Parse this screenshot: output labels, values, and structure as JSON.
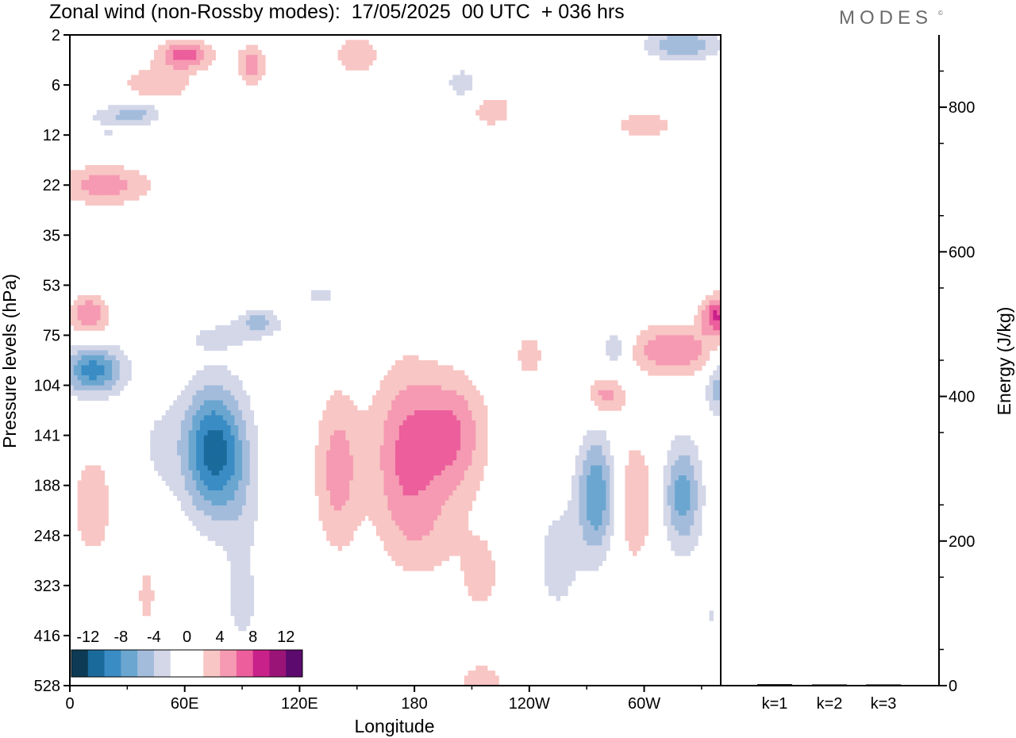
{
  "header": {
    "title": "Zonal wind (non-Rossby modes):  17/05/2025  00 UTC  + 036 hrs",
    "brand": "MODES",
    "brand_mark": "©"
  },
  "chart_data": [
    {
      "type": "heatmap",
      "title": "Zonal wind (non-Rossby modes):  17/05/2025  00 UTC  + 036 hrs",
      "xlabel": "Longitude",
      "ylabel": "Pressure levels (hPa)",
      "x_ticks": [
        "0",
        "60E",
        "120E",
        "180",
        "120W",
        "60W"
      ],
      "x_tick_values": [
        0,
        60,
        120,
        180,
        240,
        300
      ],
      "xlim": [
        0,
        340
      ],
      "y_ticks": [
        "2",
        "6",
        "12",
        "22",
        "35",
        "53",
        "75",
        "104",
        "141",
        "188",
        "248",
        "323",
        "416",
        "528"
      ],
      "y_scale": "pressure levels (inverted, top = 2 hPa)",
      "colorbar": {
        "labels": [
          "-12",
          "-8",
          "-4",
          "0",
          "4",
          "8",
          "12"
        ],
        "colors": [
          "#0d3b55",
          "#1a6a9c",
          "#3a8cc4",
          "#6aa6d0",
          "#a4bcdc",
          "#d3d7e8",
          "#ffffff",
          "#ffffff",
          "#f8c6c4",
          "#f59ab2",
          "#ec5e9c",
          "#c9218a",
          "#9a1478",
          "#5c0a6e"
        ],
        "placement": "lower-left"
      },
      "blobs": [
        {
          "lon": 18,
          "lev": 3.0,
          "r_lon": 26,
          "r_lev": 0.4,
          "v": 5
        },
        {
          "lon": 45,
          "lev": 1.0,
          "r_lon": 18,
          "r_lev": 0.35,
          "v": 4
        },
        {
          "lon": 60,
          "lev": 0.4,
          "r_lon": 14,
          "r_lev": 0.3,
          "v": 7
        },
        {
          "lon": 40,
          "lev": 1.5,
          "r_lon": 10,
          "r_lev": 0.3,
          "v": -3
        },
        {
          "lon": 25,
          "lev": 1.6,
          "r_lon": 15,
          "r_lev": 0.2,
          "v": -4
        },
        {
          "lon": 20,
          "lev": 2.0,
          "r_lon": 12,
          "r_lev": 0.2,
          "v": -2
        },
        {
          "lon": 95,
          "lev": 0.6,
          "r_lon": 8,
          "r_lev": 0.4,
          "v": 5
        },
        {
          "lon": 150,
          "lev": 0.4,
          "r_lon": 12,
          "r_lev": 0.4,
          "v": 4
        },
        {
          "lon": 205,
          "lev": 1.0,
          "r_lon": 10,
          "r_lev": 0.4,
          "v": -3
        },
        {
          "lon": 270,
          "lev": 0.8,
          "r_lon": 20,
          "r_lev": 0.4,
          "v": -2
        },
        {
          "lon": 320,
          "lev": 0.2,
          "r_lon": 20,
          "r_lev": 0.3,
          "v": -6
        },
        {
          "lon": 220,
          "lev": 1.5,
          "r_lon": 14,
          "r_lev": 0.4,
          "v": 3
        },
        {
          "lon": 300,
          "lev": 1.8,
          "r_lon": 20,
          "r_lev": 0.3,
          "v": 3
        },
        {
          "lon": 140,
          "lev": 1.8,
          "r_lon": 18,
          "r_lev": 0.3,
          "v": -2
        },
        {
          "lon": 10,
          "lev": 5.6,
          "r_lon": 10,
          "r_lev": 0.4,
          "v": 6
        },
        {
          "lon": 60,
          "lev": 5.5,
          "r_lon": 20,
          "r_lev": 0.6,
          "v": 2
        },
        {
          "lon": 110,
          "lev": 5.2,
          "r_lon": 16,
          "r_lev": 0.5,
          "v": 2
        },
        {
          "lon": 75,
          "lev": 6.0,
          "r_lon": 22,
          "r_lev": 0.3,
          "v": -3
        },
        {
          "lon": 100,
          "lev": 5.7,
          "r_lon": 12,
          "r_lev": 0.3,
          "v": -5
        },
        {
          "lon": 130,
          "lev": 5.2,
          "r_lon": 10,
          "r_lev": 0.3,
          "v": -3
        },
        {
          "lon": 12,
          "lev": 6.7,
          "r_lon": 16,
          "r_lev": 0.5,
          "v": -9
        },
        {
          "lon": 285,
          "lev": 6.3,
          "r_lon": 8,
          "r_lev": 0.5,
          "v": -4
        },
        {
          "lon": 315,
          "lev": 6.3,
          "r_lon": 24,
          "r_lev": 0.5,
          "v": 6
        },
        {
          "lon": 338,
          "lev": 5.6,
          "r_lon": 8,
          "r_lev": 0.4,
          "v": 8
        },
        {
          "lon": 280,
          "lev": 7.2,
          "r_lon": 10,
          "r_lev": 0.4,
          "v": 5
        },
        {
          "lon": 338,
          "lev": 7.0,
          "r_lon": 6,
          "r_lev": 0.6,
          "v": -5
        },
        {
          "lon": 240,
          "lev": 6.4,
          "r_lon": 8,
          "r_lev": 0.5,
          "v": 3
        },
        {
          "lon": 75,
          "lev": 8.3,
          "r_lon": 16,
          "r_lev": 1.3,
          "v": -11
        },
        {
          "lon": 90,
          "lev": 9.5,
          "r_lon": 12,
          "r_lev": 1.8,
          "v": -2
        },
        {
          "lon": 140,
          "lev": 8.7,
          "r_lon": 12,
          "r_lev": 1.6,
          "v": 5
        },
        {
          "lon": 175,
          "lev": 8.4,
          "r_lon": 18,
          "r_lev": 1.8,
          "v": 6
        },
        {
          "lon": 200,
          "lev": 8.0,
          "r_lon": 18,
          "r_lev": 1.2,
          "v": 6
        },
        {
          "lon": 190,
          "lev": 10.0,
          "r_lon": 22,
          "r_lev": 1.0,
          "v": 2
        },
        {
          "lon": 215,
          "lev": 10.8,
          "r_lon": 10,
          "r_lev": 0.8,
          "v": 3
        },
        {
          "lon": 275,
          "lev": 9.2,
          "r_lon": 10,
          "r_lev": 1.2,
          "v": -8
        },
        {
          "lon": 295,
          "lev": 9.3,
          "r_lon": 10,
          "r_lev": 1.3,
          "v": 4
        },
        {
          "lon": 320,
          "lev": 9.2,
          "r_lon": 10,
          "r_lev": 1.1,
          "v": -7
        },
        {
          "lon": 255,
          "lev": 10.5,
          "r_lon": 12,
          "r_lev": 1.2,
          "v": -3
        },
        {
          "lon": 12,
          "lev": 9.4,
          "r_lon": 10,
          "r_lev": 1.0,
          "v": 4
        },
        {
          "lon": 45,
          "lev": 8.2,
          "r_lon": 14,
          "r_lev": 1.2,
          "v": -2
        },
        {
          "lon": 40,
          "lev": 11.2,
          "r_lon": 5,
          "r_lev": 0.6,
          "v": 3
        },
        {
          "lon": 90,
          "lev": 11.5,
          "r_lon": 10,
          "r_lev": 1.0,
          "v": -2
        },
        {
          "lon": 335,
          "lev": 11.6,
          "r_lon": 10,
          "r_lev": 1.0,
          "v": -2
        },
        {
          "lon": 215,
          "lev": 13.0,
          "r_lon": 14,
          "r_lev": 0.6,
          "v": 3
        },
        {
          "lon": 5,
          "lev": 12.2,
          "r_lon": 8,
          "r_lev": 0.6,
          "v": -2
        }
      ]
    },
    {
      "type": "bar",
      "categories": [
        "k=1",
        "k=2",
        "k=3"
      ],
      "values": [
        2,
        1,
        0.5
      ],
      "ylabel": "Energy (J/kg)",
      "ylim": [
        0,
        900
      ],
      "y_ticks": [
        0,
        200,
        400,
        600,
        800
      ]
    }
  ]
}
